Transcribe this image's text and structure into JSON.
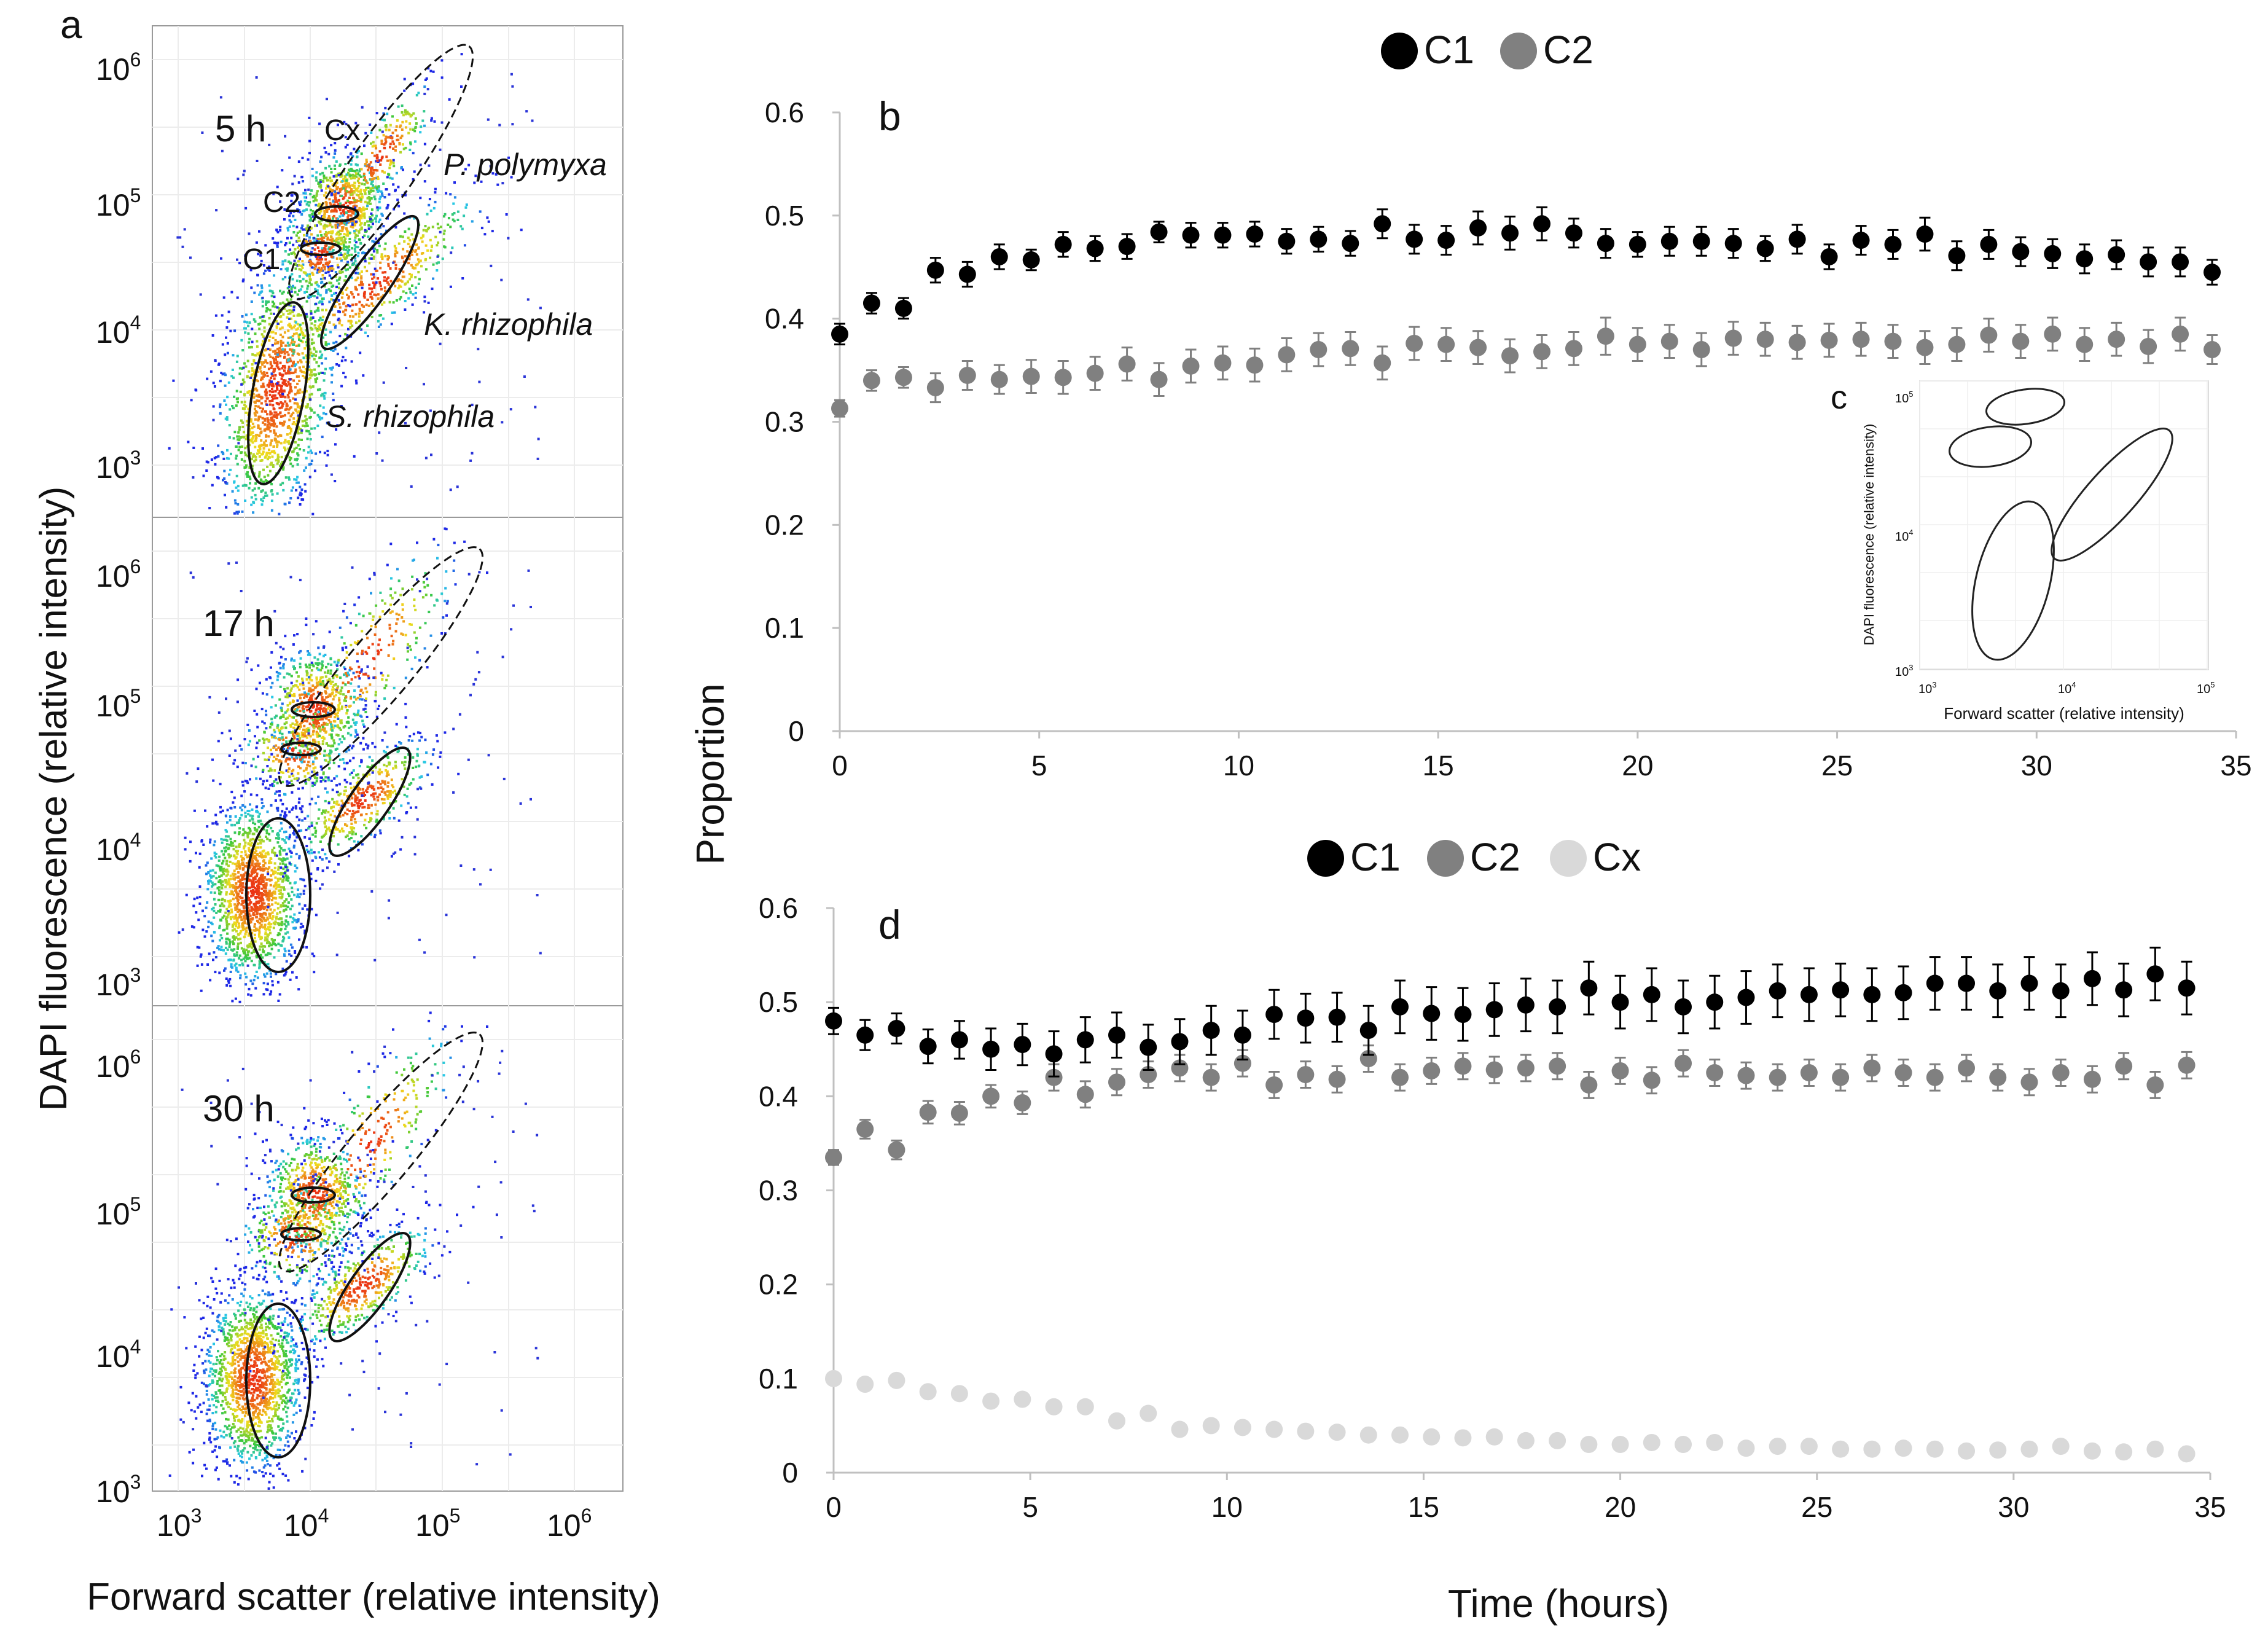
{
  "panel_a": {
    "letter": "a",
    "ylabel": "DAPI fluorescence (relative intensity)",
    "xlabel": "Forward scatter (relative intensity)",
    "x_ticks": [
      {
        "base": "10",
        "exp": "3"
      },
      {
        "base": "10",
        "exp": "4"
      },
      {
        "base": "10",
        "exp": "5"
      },
      {
        "base": "10",
        "exp": "6"
      }
    ],
    "y_ticks": [
      {
        "base": "10",
        "exp": "3"
      },
      {
        "base": "10",
        "exp": "4"
      },
      {
        "base": "10",
        "exp": "5"
      },
      {
        "base": "10",
        "exp": "6"
      }
    ],
    "subplots": [
      {
        "time_label": "5 h"
      },
      {
        "time_label": "17 h"
      },
      {
        "time_label": "30 h"
      }
    ],
    "gate_labels": {
      "cx": "Cx",
      "c2": "C2",
      "c1": "C1",
      "p_polymyxa": "P. polymyxa",
      "k_rhizophila": "K. rhizophila",
      "s_rhizophila": "S. rhizophila"
    }
  },
  "panel_c": {
    "letter": "c",
    "xlabel": "Forward scatter (relative intensity)",
    "ylabel": "DAPI fluorescence (relative intensity)",
    "x_ticks": [
      {
        "base": "10",
        "exp": "3"
      },
      {
        "base": "10",
        "exp": "4"
      },
      {
        "base": "10",
        "exp": "5"
      }
    ],
    "y_ticks": [
      {
        "base": "10",
        "exp": "3"
      },
      {
        "base": "10",
        "exp": "4"
      },
      {
        "base": "10",
        "exp": "5"
      }
    ]
  },
  "shared": {
    "ylabel": "Proportion",
    "xlabel": "Time (hours)"
  },
  "colors": {
    "C1": "#000000",
    "C2": "#808080",
    "Cx": "#d9d9d9",
    "axis": "#c0c0c0"
  },
  "chart_data": [
    {
      "panel": "b",
      "type": "scatter",
      "error_bars": true,
      "legend": [
        "C1",
        "C2"
      ],
      "legend_position": "top",
      "xlabel": "Time (hours)",
      "ylabel": "Proportion",
      "xlim": [
        0,
        35
      ],
      "ylim": [
        0,
        0.6
      ],
      "x_ticks": [
        "0",
        "5",
        "10",
        "15",
        "20",
        "25",
        "30",
        "35"
      ],
      "y_ticks": [
        "0",
        "0.1",
        "0.2",
        "0.3",
        "0.4",
        "0.5",
        "0.6"
      ],
      "x": [
        0,
        0.8,
        1.6,
        2.4,
        3.2,
        4.0,
        4.8,
        5.6,
        6.4,
        7.2,
        8.0,
        8.8,
        9.6,
        10.4,
        11.2,
        12.0,
        12.8,
        13.6,
        14.4,
        15.2,
        16.0,
        16.8,
        17.6,
        18.4,
        19.2,
        20.0,
        20.8,
        21.6,
        22.4,
        23.2,
        24.0,
        24.8,
        25.6,
        26.4,
        27.2,
        28.0,
        28.8,
        29.6,
        30.4,
        31.2,
        32.0,
        32.8,
        33.6,
        34.4
      ],
      "series": [
        {
          "name": "C1",
          "values": [
            0.385,
            0.415,
            0.41,
            0.447,
            0.443,
            0.46,
            0.457,
            0.472,
            0.468,
            0.47,
            0.484,
            0.481,
            0.481,
            0.482,
            0.475,
            0.477,
            0.473,
            0.492,
            0.477,
            0.476,
            0.488,
            0.483,
            0.492,
            0.483,
            0.473,
            0.472,
            0.475,
            0.475,
            0.473,
            0.468,
            0.477,
            0.46,
            0.476,
            0.472,
            0.482,
            0.461,
            0.472,
            0.465,
            0.463,
            0.458,
            0.462,
            0.455,
            0.455,
            0.445
          ],
          "errors": [
            0.01,
            0.01,
            0.01,
            0.012,
            0.012,
            0.012,
            0.01,
            0.012,
            0.012,
            0.012,
            0.01,
            0.012,
            0.012,
            0.012,
            0.012,
            0.012,
            0.012,
            0.014,
            0.014,
            0.014,
            0.016,
            0.016,
            0.016,
            0.014,
            0.014,
            0.012,
            0.014,
            0.014,
            0.014,
            0.012,
            0.014,
            0.012,
            0.014,
            0.014,
            0.016,
            0.014,
            0.014,
            0.014,
            0.014,
            0.014,
            0.014,
            0.014,
            0.014,
            0.012
          ]
        },
        {
          "name": "C2",
          "values": [
            0.313,
            0.34,
            0.343,
            0.333,
            0.345,
            0.341,
            0.344,
            0.343,
            0.347,
            0.356,
            0.341,
            0.354,
            0.357,
            0.355,
            0.365,
            0.37,
            0.371,
            0.357,
            0.376,
            0.375,
            0.372,
            0.364,
            0.368,
            0.371,
            0.383,
            0.375,
            0.378,
            0.37,
            0.381,
            0.38,
            0.377,
            0.379,
            0.38,
            0.378,
            0.372,
            0.375,
            0.384,
            0.378,
            0.385,
            0.375,
            0.38,
            0.373,
            0.385,
            0.37
          ],
          "errors": [
            0.008,
            0.01,
            0.01,
            0.014,
            0.014,
            0.014,
            0.016,
            0.016,
            0.016,
            0.016,
            0.016,
            0.016,
            0.016,
            0.016,
            0.016,
            0.016,
            0.016,
            0.016,
            0.016,
            0.016,
            0.016,
            0.016,
            0.016,
            0.016,
            0.018,
            0.016,
            0.016,
            0.016,
            0.016,
            0.016,
            0.016,
            0.016,
            0.016,
            0.016,
            0.016,
            0.016,
            0.016,
            0.016,
            0.016,
            0.016,
            0.016,
            0.016,
            0.016,
            0.014
          ]
        }
      ]
    },
    {
      "panel": "d",
      "type": "scatter",
      "error_bars": true,
      "legend": [
        "C1",
        "C2",
        "Cx"
      ],
      "legend_position": "top",
      "xlabel": "Time (hours)",
      "ylabel": "Proportion",
      "xlim": [
        0,
        35
      ],
      "ylim": [
        0,
        0.6
      ],
      "x_ticks": [
        "0",
        "5",
        "10",
        "15",
        "20",
        "25",
        "30",
        "35"
      ],
      "y_ticks": [
        "0",
        "0.1",
        "0.2",
        "0.3",
        "0.4",
        "0.5",
        "0.6"
      ],
      "x": [
        0,
        0.8,
        1.6,
        2.4,
        3.2,
        4.0,
        4.8,
        5.6,
        6.4,
        7.2,
        8.0,
        8.8,
        9.6,
        10.4,
        11.2,
        12.0,
        12.8,
        13.6,
        14.4,
        15.2,
        16.0,
        16.8,
        17.6,
        18.4,
        19.2,
        20.0,
        20.8,
        21.6,
        22.4,
        23.2,
        24.0,
        24.8,
        25.6,
        26.4,
        27.2,
        28.0,
        28.8,
        29.6,
        30.4,
        31.2,
        32.0,
        32.8,
        33.6,
        34.4
      ],
      "series": [
        {
          "name": "C1",
          "values": [
            0.48,
            0.465,
            0.472,
            0.453,
            0.46,
            0.45,
            0.455,
            0.445,
            0.46,
            0.465,
            0.452,
            0.458,
            0.47,
            0.465,
            0.487,
            0.483,
            0.484,
            0.47,
            0.495,
            0.488,
            0.487,
            0.492,
            0.497,
            0.495,
            0.515,
            0.5,
            0.508,
            0.495,
            0.5,
            0.505,
            0.512,
            0.508,
            0.513,
            0.508,
            0.51,
            0.52,
            0.52,
            0.512,
            0.52,
            0.512,
            0.525,
            0.513,
            0.53,
            0.515
          ],
          "errors": [
            0.014,
            0.016,
            0.016,
            0.018,
            0.02,
            0.022,
            0.022,
            0.024,
            0.024,
            0.024,
            0.024,
            0.024,
            0.026,
            0.026,
            0.026,
            0.026,
            0.026,
            0.026,
            0.028,
            0.028,
            0.028,
            0.028,
            0.028,
            0.028,
            0.028,
            0.028,
            0.028,
            0.028,
            0.028,
            0.028,
            0.028,
            0.028,
            0.028,
            0.028,
            0.028,
            0.028,
            0.028,
            0.028,
            0.028,
            0.028,
            0.028,
            0.028,
            0.028,
            0.028
          ]
        },
        {
          "name": "C2",
          "values": [
            0.335,
            0.365,
            0.343,
            0.383,
            0.382,
            0.4,
            0.393,
            0.42,
            0.402,
            0.415,
            0.423,
            0.43,
            0.42,
            0.435,
            0.412,
            0.423,
            0.418,
            0.44,
            0.42,
            0.427,
            0.432,
            0.428,
            0.43,
            0.432,
            0.412,
            0.427,
            0.417,
            0.435,
            0.425,
            0.422,
            0.42,
            0.425,
            0.42,
            0.43,
            0.425,
            0.42,
            0.43,
            0.42,
            0.415,
            0.425,
            0.418,
            0.432,
            0.412,
            0.433
          ],
          "errors": [
            0.008,
            0.01,
            0.01,
            0.012,
            0.012,
            0.012,
            0.012,
            0.014,
            0.014,
            0.014,
            0.014,
            0.014,
            0.014,
            0.014,
            0.014,
            0.014,
            0.014,
            0.014,
            0.014,
            0.014,
            0.014,
            0.014,
            0.014,
            0.014,
            0.014,
            0.014,
            0.014,
            0.014,
            0.014,
            0.014,
            0.014,
            0.014,
            0.014,
            0.014,
            0.014,
            0.014,
            0.014,
            0.014,
            0.014,
            0.014,
            0.014,
            0.014,
            0.014,
            0.014
          ]
        },
        {
          "name": "Cx",
          "values": [
            0.1,
            0.094,
            0.098,
            0.086,
            0.084,
            0.076,
            0.078,
            0.07,
            0.07,
            0.055,
            0.063,
            0.046,
            0.05,
            0.048,
            0.046,
            0.044,
            0.043,
            0.04,
            0.04,
            0.038,
            0.037,
            0.038,
            0.034,
            0.034,
            0.03,
            0.03,
            0.032,
            0.03,
            0.032,
            0.026,
            0.028,
            0.028,
            0.025,
            0.025,
            0.026,
            0.025,
            0.023,
            0.024,
            0.025,
            0.028,
            0.023,
            0.022,
            0.025,
            0.02
          ],
          "errors": [
            0,
            0,
            0,
            0,
            0,
            0,
            0,
            0,
            0,
            0,
            0,
            0,
            0,
            0,
            0,
            0,
            0,
            0,
            0,
            0,
            0,
            0,
            0,
            0,
            0,
            0,
            0,
            0,
            0,
            0,
            0,
            0,
            0,
            0,
            0,
            0,
            0,
            0,
            0,
            0,
            0,
            0,
            0,
            0
          ]
        }
      ]
    }
  ]
}
